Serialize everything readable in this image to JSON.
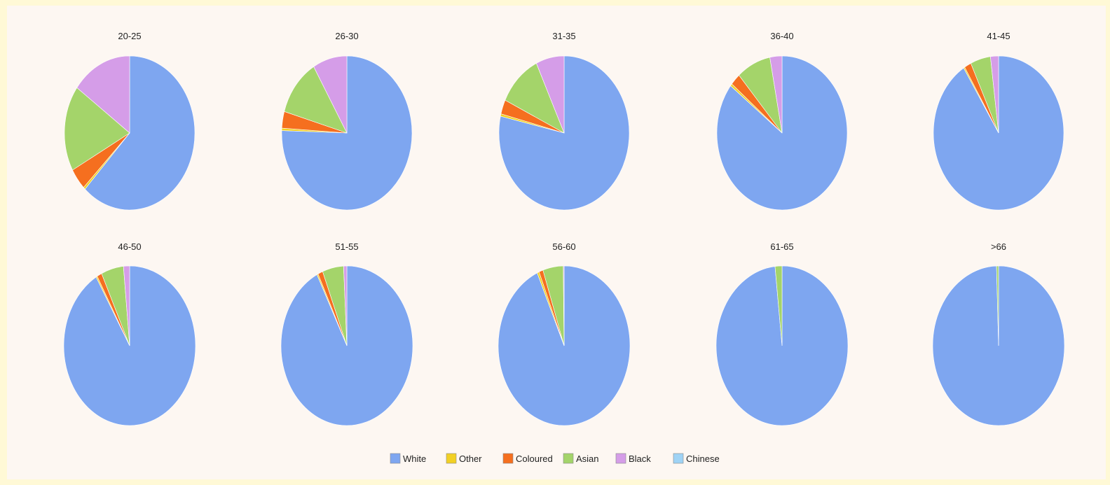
{
  "chart_data": {
    "type": "pie",
    "legend": {
      "position": "bottom",
      "items": [
        {
          "label": "White",
          "color": "#7ea6f0"
        },
        {
          "label": "Other",
          "color": "#f2d024"
        },
        {
          "label": "Coloured",
          "color": "#f56f1f"
        },
        {
          "label": "Asian",
          "color": "#a4d46a"
        },
        {
          "label": "Black",
          "color": "#d59de8"
        },
        {
          "label": "Chinese",
          "color": "#9fd3f5"
        }
      ]
    },
    "series_order": [
      "White",
      "Other",
      "Coloured",
      "Asian",
      "Black",
      "Chinese"
    ],
    "charts": [
      {
        "title": "20-25",
        "values": [
          62,
          0.5,
          4.5,
          18,
          15,
          0
        ]
      },
      {
        "title": "26-30",
        "values": [
          75.5,
          0.5,
          3.5,
          12,
          8.5,
          0
        ]
      },
      {
        "title": "31-35",
        "values": [
          78.5,
          0.5,
          3,
          11,
          7,
          0
        ]
      },
      {
        "title": "36-40",
        "values": [
          85.5,
          0.5,
          2.5,
          8.5,
          3,
          0
        ]
      },
      {
        "title": "41-45",
        "values": [
          91,
          0.3,
          1.7,
          5,
          2,
          0
        ]
      },
      {
        "title": "46-50",
        "values": [
          91.5,
          0.3,
          1.2,
          5.5,
          1.5,
          0
        ]
      },
      {
        "title": "51-55",
        "values": [
          92.5,
          0.3,
          1.2,
          5.2,
          0.8,
          0
        ]
      },
      {
        "title": "56-60",
        "values": [
          93.3,
          0.5,
          1,
          5,
          0.2,
          0
        ]
      },
      {
        "title": "61-65",
        "values": [
          98.3,
          0,
          0,
          1.7,
          0,
          0
        ]
      },
      {
        "title": ">66",
        "values": [
          99.5,
          0,
          0,
          0.5,
          0,
          0
        ]
      }
    ]
  }
}
